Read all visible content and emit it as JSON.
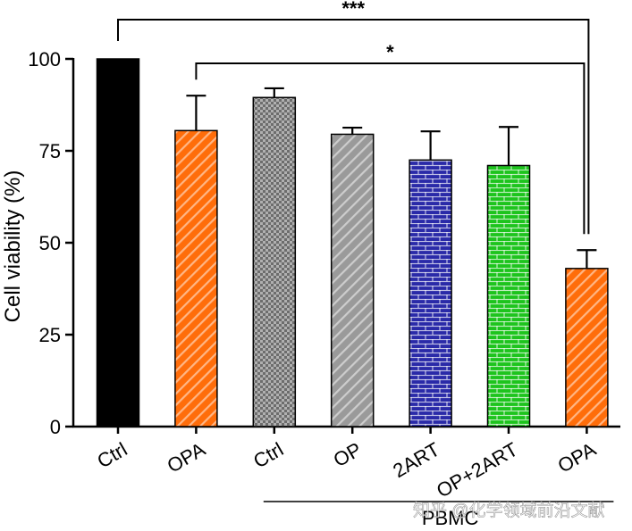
{
  "chart_data": {
    "type": "bar",
    "title": "",
    "xlabel": "",
    "ylabel": "Cell viability (%)",
    "ylim": [
      0,
      100
    ],
    "yticks": [
      0,
      25,
      50,
      75,
      100
    ],
    "categories": [
      "Ctrl",
      "OPA",
      "Ctrl",
      "OP",
      "2ART",
      "OP+2ART",
      "OPA"
    ],
    "values": [
      100,
      80.5,
      89.5,
      79.5,
      72.5,
      71,
      43
    ],
    "errors": [
      0,
      9.5,
      2.5,
      1.8,
      7.8,
      10.5,
      5
    ],
    "fills": [
      "solid",
      "diagonal",
      "checker",
      "diagonal",
      "brick",
      "brick",
      "diagonal"
    ],
    "colors": [
      "#000000",
      "#ff6d0a",
      "#6d6d6d",
      "#9a9a9a",
      "#2a2aa8",
      "#1dc41d",
      "#ff6d0a"
    ],
    "group_label": "PBMC",
    "significance": [
      {
        "label": "***",
        "from": 0,
        "to": 6
      },
      {
        "label": "*",
        "from": 1,
        "to": 6
      }
    ]
  },
  "watermark": "知乎 @化学领域前沿文献"
}
